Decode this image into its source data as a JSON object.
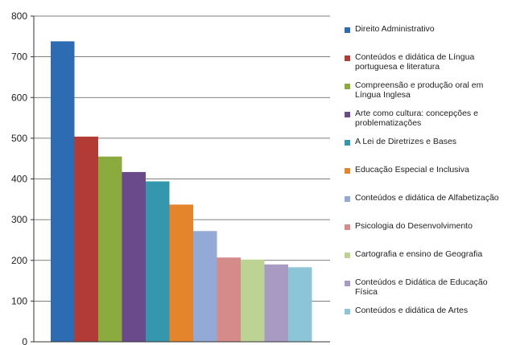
{
  "chart_data": {
    "type": "bar",
    "title": "",
    "xlabel": "",
    "ylabel": "",
    "ylim": [
      0,
      800
    ],
    "yticks": [
      0,
      100,
      200,
      300,
      400,
      500,
      600,
      700,
      800
    ],
    "grid": true,
    "legend_position": "right",
    "series": [
      {
        "name": "Direito Administrativo",
        "value": 738,
        "color": "#2d6bb3"
      },
      {
        "name": "Conteúdos e didática de Língua portuguesa e literatura",
        "value": 504,
        "color": "#b23b36"
      },
      {
        "name": "Compreensão e produção oral em Língua Inglesa",
        "value": 455,
        "color": "#8bab3f"
      },
      {
        "name": "Arte como cultura: concepções e problematizações",
        "value": 417,
        "color": "#6b4a8c"
      },
      {
        "name": "A Lei de Diretrizes e Bases",
        "value": 394,
        "color": "#3497ae"
      },
      {
        "name": "Educação Especial e Inclusiva",
        "value": 337,
        "color": "#e4842c"
      },
      {
        "name": "Conteúdos e didática de Alfabetização",
        "value": 272,
        "color": "#93a9d6"
      },
      {
        "name": "Psicologia do Desenvolvimento",
        "value": 207,
        "color": "#d68b8b"
      },
      {
        "name": "Cartografia e ensino de Geografia",
        "value": 202,
        "color": "#bcd394"
      },
      {
        "name": "Conteúdos e Didática de Educação Física",
        "value": 190,
        "color": "#a99ac4"
      },
      {
        "name": "Conteúdos e didática de Artes",
        "value": 183,
        "color": "#8cc5d8"
      }
    ]
  }
}
